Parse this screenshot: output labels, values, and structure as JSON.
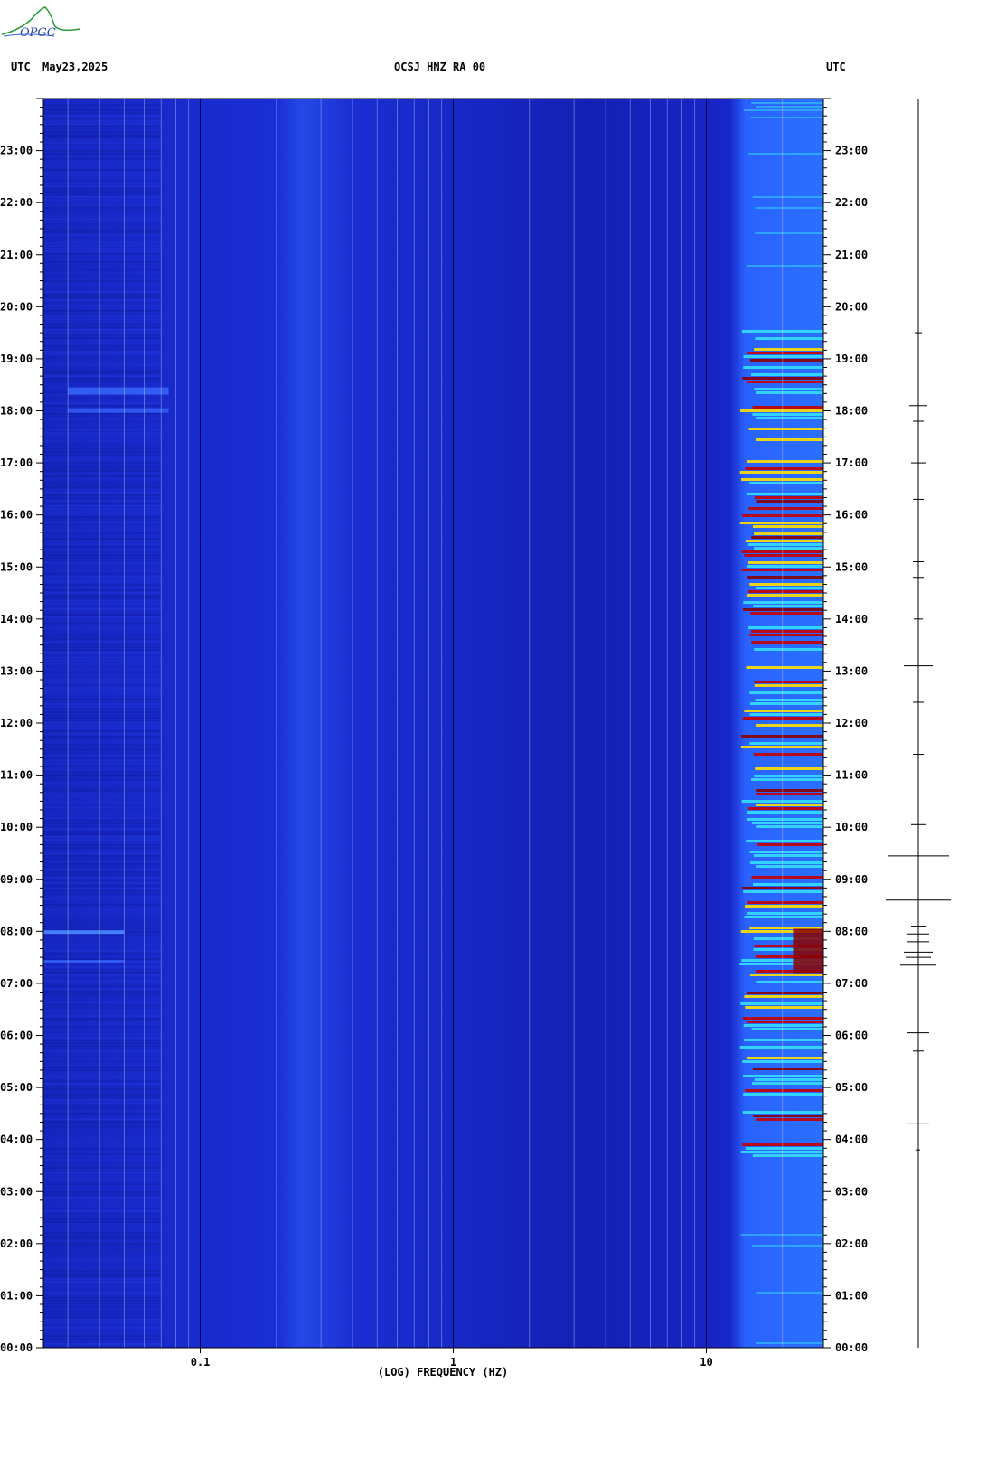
{
  "header": {
    "left_utc": "UTC",
    "date": "May23,2025",
    "station": "OCSJ HNZ RA 00",
    "right_utc": "UTC"
  },
  "logo": {
    "text": "OPGC"
  },
  "chart_data": {
    "type": "heatmap",
    "title": "OCSJ HNZ RA 00",
    "xlabel": "(LOG) FREQUENCY (HZ)",
    "x_scale": "log",
    "xlim": [
      0.024,
      29
    ],
    "x_ticks": [
      {
        "value": 0.1,
        "label": "0.1"
      },
      {
        "value": 1,
        "label": "1"
      },
      {
        "value": 10,
        "label": "10"
      }
    ],
    "ylabel": "UTC",
    "ylim_hours": [
      0,
      24
    ],
    "y_ticks": [
      "00:00",
      "01:00",
      "02:00",
      "03:00",
      "04:00",
      "05:00",
      "06:00",
      "07:00",
      "08:00",
      "09:00",
      "10:00",
      "11:00",
      "12:00",
      "13:00",
      "14:00",
      "15:00",
      "16:00",
      "17:00",
      "18:00",
      "19:00",
      "20:00",
      "21:00",
      "22:00",
      "23:00"
    ],
    "colors": {
      "low": "#1a22c8",
      "mid": "#2b7bff",
      "cyan": "#33e0ff",
      "yellow": "#ffe000",
      "red": "#c80000",
      "dark_red": "#8a0000"
    }
  }
}
